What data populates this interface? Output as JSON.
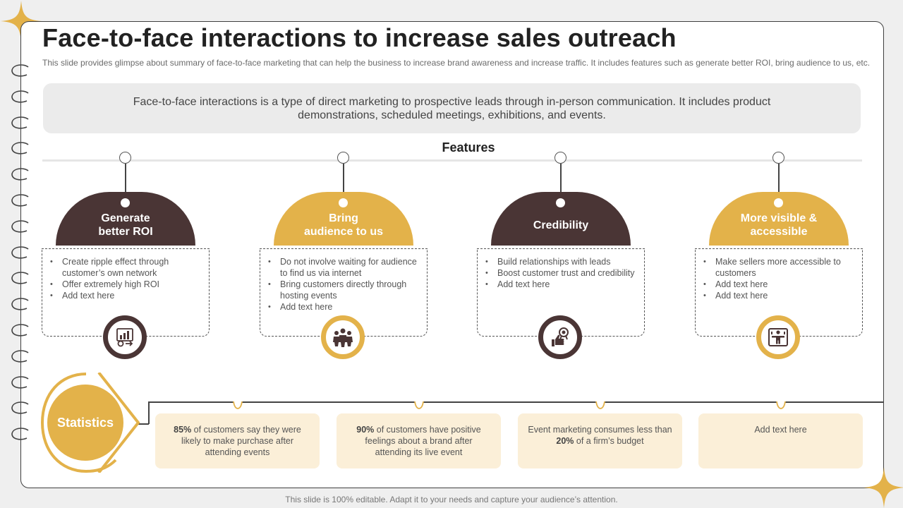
{
  "title": "Face-to-face interactions to increase sales outreach",
  "subtitle": "This slide provides glimpse about summary of face-to-face marketing that can help the business to increase brand awareness and increase traffic. It includes features such as generate better ROI, bring audience to us, etc.",
  "intro": "Face-to-face interactions is a type of direct marketing to prospective leads through in-person communication. It includes product demonstrations, scheduled meetings, exhibitions, and events.",
  "features_label": "Features",
  "features": [
    {
      "title_line1": "Generate",
      "title_line2": "better ROI",
      "icon": "roi-chart-icon",
      "bullets": [
        "Create ripple effect through customer’s own network",
        "Offer extremely high ROI",
        "Add text here"
      ]
    },
    {
      "title_line1": "Bring",
      "title_line2": "audience to us",
      "icon": "audience-group-icon",
      "bullets": [
        "Do not involve waiting for audience to find us via internet",
        "Bring customers directly through hosting events",
        "Add text here"
      ]
    },
    {
      "title_line1": "Credibility",
      "title_line2": "",
      "icon": "thumbs-up-badge-icon",
      "bullets": [
        "Build relationships with leads",
        "Boost customer trust and credibility",
        "Add text here"
      ]
    },
    {
      "title_line1": "More visible &",
      "title_line2": "accessible",
      "icon": "person-visible-icon",
      "bullets": [
        "Make sellers more accessible to customers",
        "Add text here",
        "Add text here"
      ]
    }
  ],
  "statistics_label": "Statistics",
  "stats": [
    {
      "pre": "",
      "bold": "85%",
      "post": " of customers say they were likely to make purchase after attending events"
    },
    {
      "pre": "",
      "bold": "90%",
      "post": " of customers have positive feelings about a brand after attending its live event"
    },
    {
      "pre": "Event marketing consumes less than ",
      "bold": "20%",
      "post": " of a firm’s budget"
    },
    {
      "pre": "Add text here",
      "bold": "",
      "post": ""
    }
  ],
  "footer": "This slide is 100% editable. Adapt it to your needs and capture your audience’s attention.",
  "colors": {
    "dark": "#4a3535",
    "gold": "#e3b24a",
    "stat_bg": "#fbefd8"
  }
}
